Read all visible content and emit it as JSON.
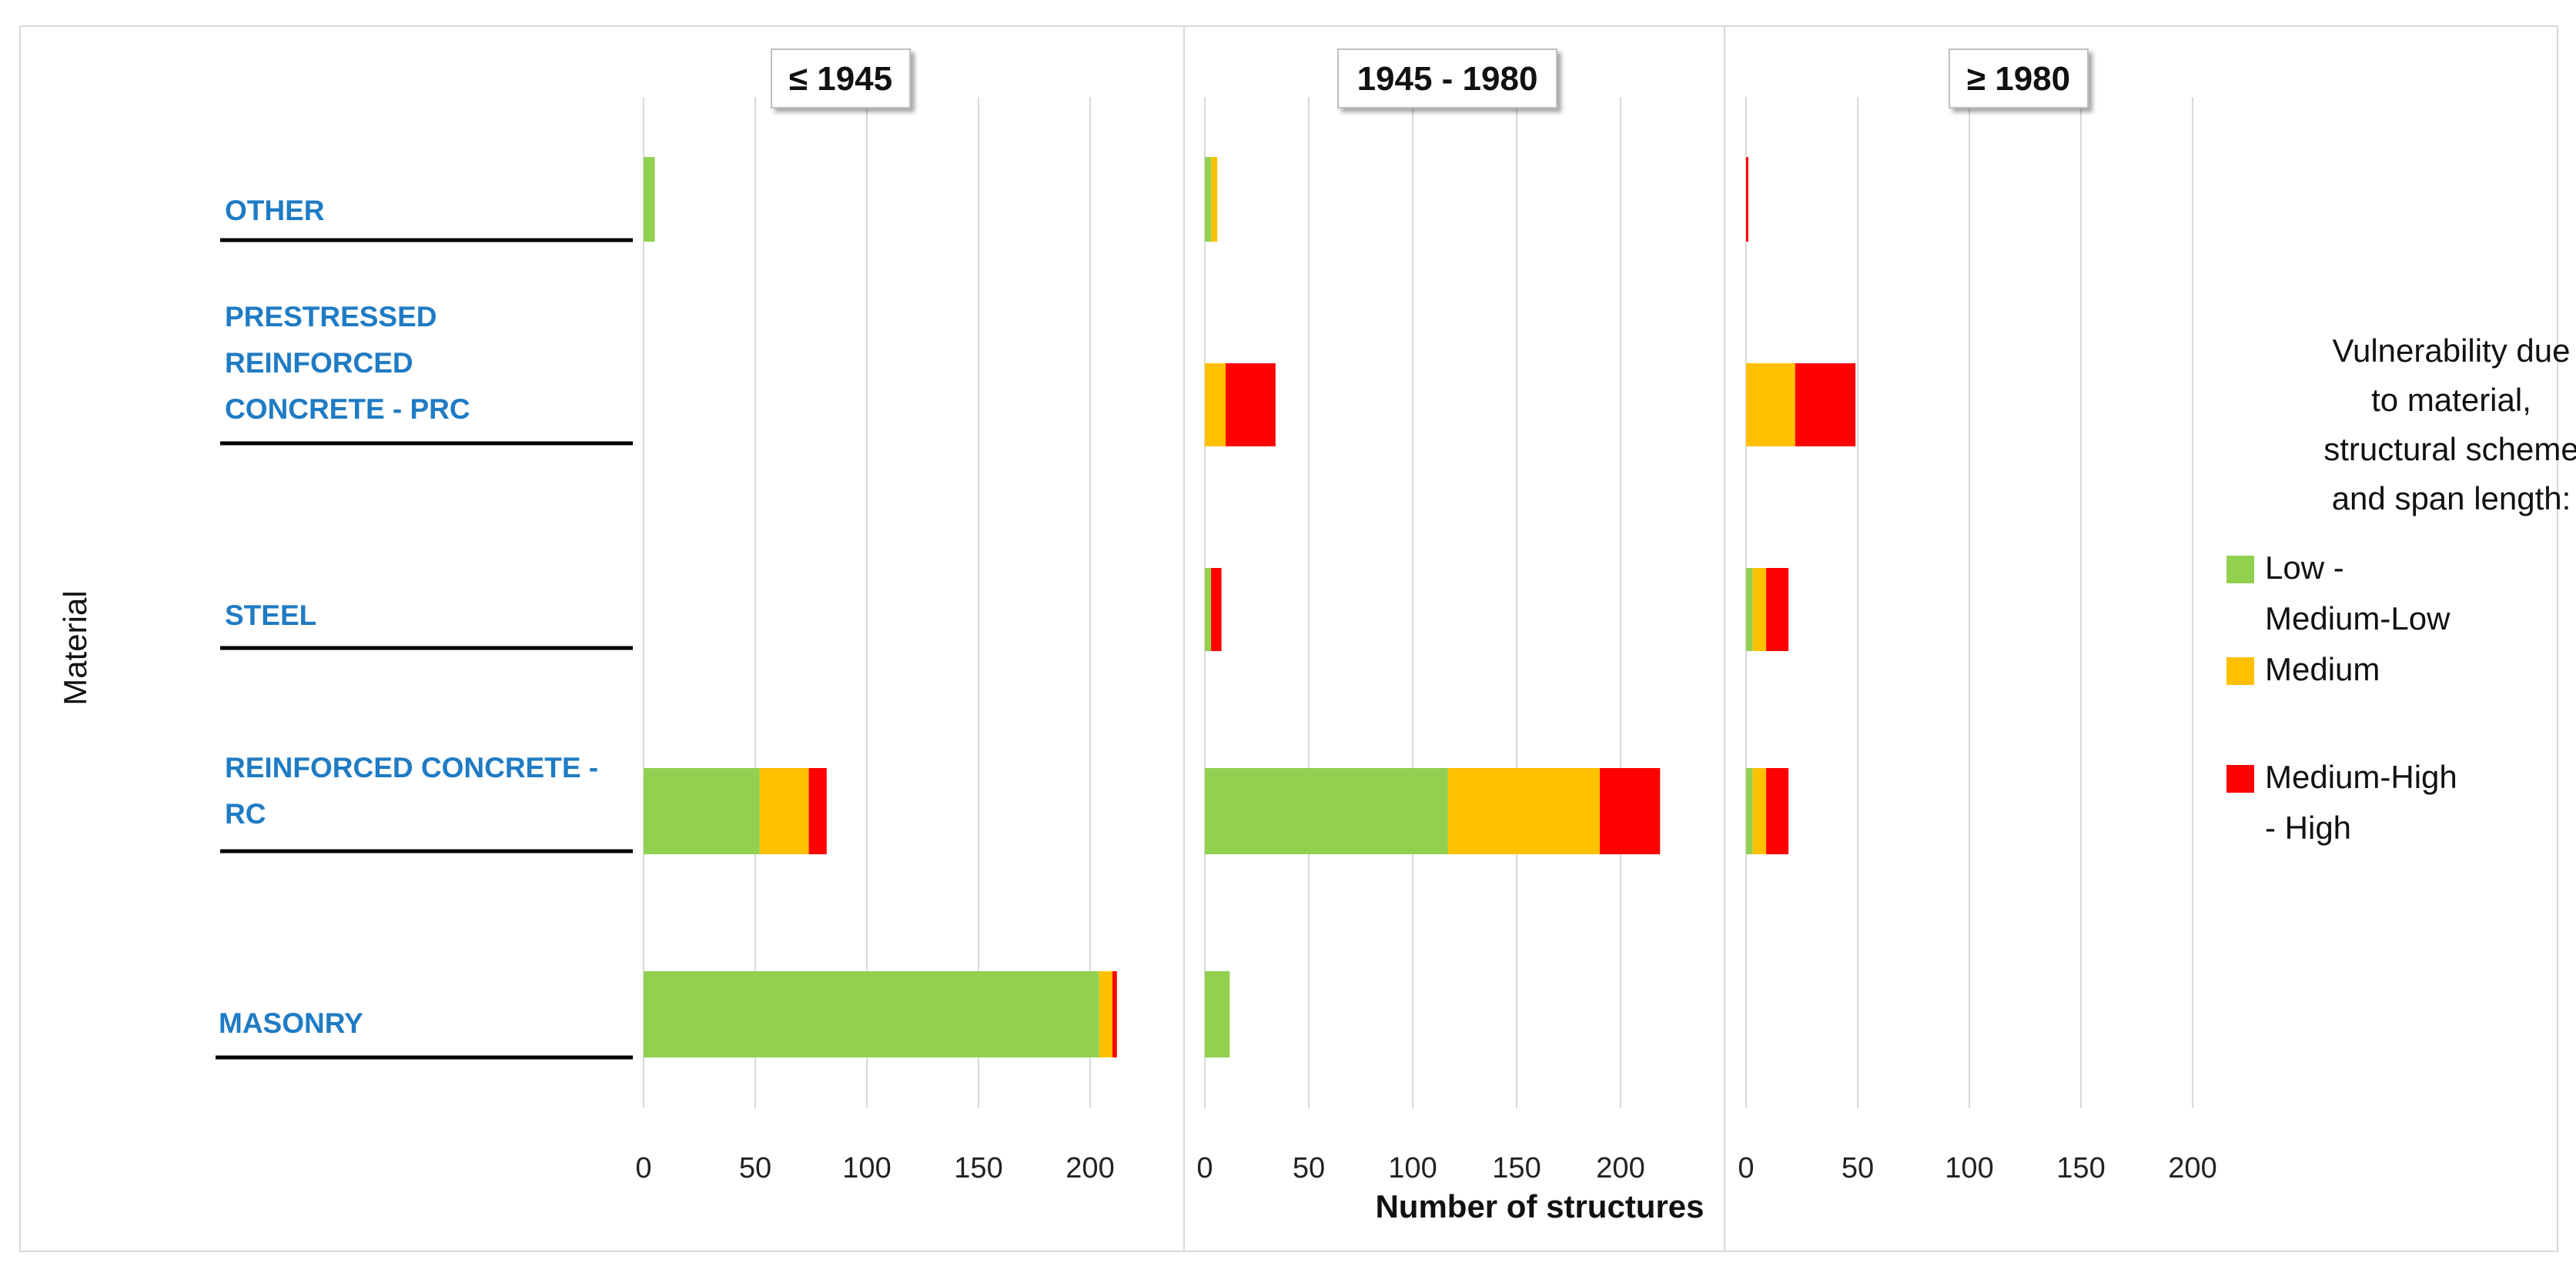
{
  "chart_data": {
    "type": "bar",
    "orientation": "horizontal",
    "stacked": true,
    "ylabel": "Material",
    "xlabel": "Number of structures",
    "xlim": [
      0,
      200
    ],
    "xticks": [
      0,
      50,
      100,
      150,
      200
    ],
    "categories": [
      "OTHER",
      "PRESTRESSED REINFORCED CONCRETE - PRC",
      "STEEL",
      "REINFORCED CONCRETE - RC",
      "MASONRY"
    ],
    "category_lines": [
      [
        "OTHER"
      ],
      [
        "PRESTRESSED",
        "REINFORCED",
        "CONCRETE - PRC"
      ],
      [
        "STEEL"
      ],
      [
        "REINFORCED CONCRETE -",
        "RC"
      ],
      [
        "MASONRY"
      ]
    ],
    "legend": {
      "title_lines": [
        "Vulnerability due",
        "to material,",
        "structural scheme",
        "and span length:"
      ],
      "items": [
        {
          "lines": [
            "Low -",
            "Medium-Low"
          ],
          "color": "#92d050"
        },
        {
          "lines": [
            "Medium"
          ],
          "color": "#ffc000"
        },
        {
          "lines": [
            "Medium-High",
            "- High"
          ],
          "color": "#ff0000"
        }
      ],
      "placement": "right"
    },
    "panels": [
      {
        "title": "≤ 1945",
        "series": [
          {
            "name": "Low - Medium-Low",
            "values": [
              5,
              0,
              0,
              52,
              204
            ]
          },
          {
            "name": "Medium",
            "values": [
              0,
              0,
              0,
              22,
              6
            ]
          },
          {
            "name": "Medium-High - High",
            "values": [
              0,
              0,
              0,
              8,
              2
            ]
          }
        ]
      },
      {
        "title": "1945 - 1980",
        "series": [
          {
            "name": "Low - Medium-Low",
            "values": [
              3,
              0,
              3,
              117,
              12
            ]
          },
          {
            "name": "Medium",
            "values": [
              3,
              10,
              0,
              73,
              0
            ]
          },
          {
            "name": "Medium-High - High",
            "values": [
              0,
              24,
              5,
              29,
              0
            ]
          }
        ]
      },
      {
        "title": "≥ 1980",
        "series": [
          {
            "name": "Low - Medium-Low",
            "values": [
              0,
              0,
              3,
              3,
              0
            ]
          },
          {
            "name": "Medium",
            "values": [
              0,
              22,
              6,
              6,
              0
            ]
          },
          {
            "name": "Medium-High - High",
            "values": [
              1,
              27,
              10,
              10,
              0
            ]
          }
        ]
      }
    ]
  }
}
